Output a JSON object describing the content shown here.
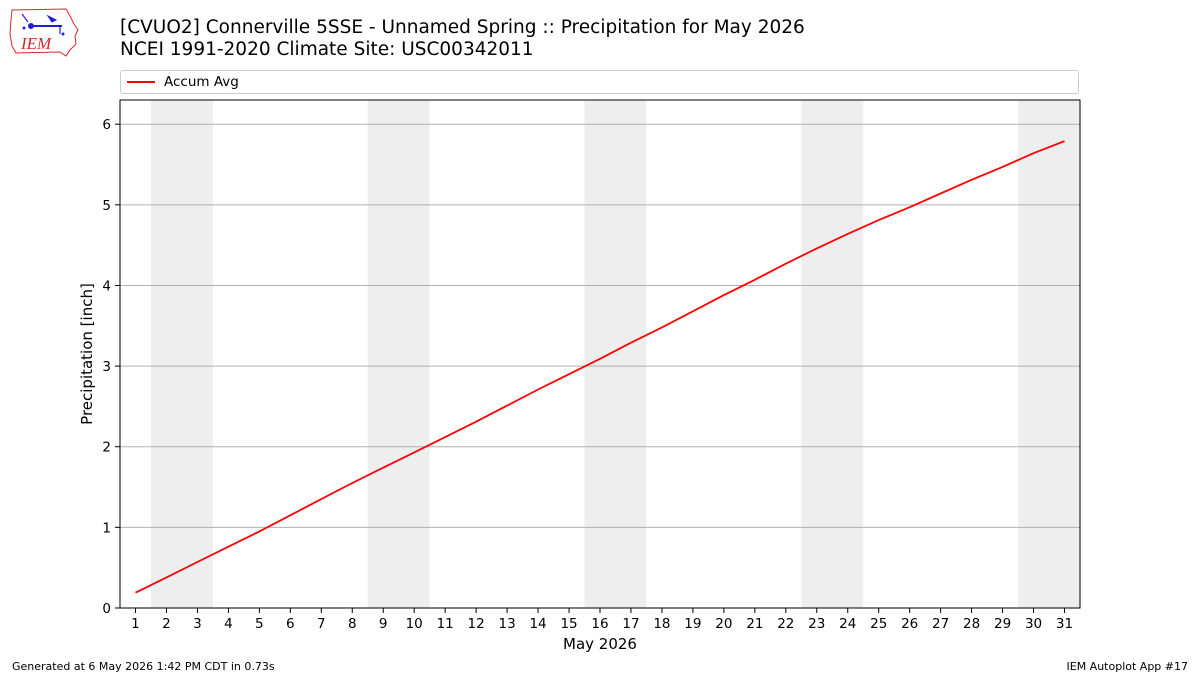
{
  "title_line1": "[CVUO2] Connerville 5SSE - Unnamed Spring :: Precipitation for May 2026",
  "title_line2": "NCEI 1991-2020 Climate Site: USC00342011",
  "logo_text": "IEM",
  "footer_left": "Generated at 6 May 2026 1:42 PM CDT in 0.73s",
  "footer_right": "IEM Autoplot App #17",
  "colors": {
    "series": "#ff0000",
    "weekend_band": "#eeeeee",
    "grid": "#b0b0b0",
    "logo": "#d62728",
    "logo_icon": "#1f1fd0"
  },
  "chart_data": {
    "type": "line",
    "xlabel": "May 2026",
    "ylabel": "Precipitation [inch]",
    "xlim": [
      0.5,
      31.5
    ],
    "ylim": [
      0,
      6.3
    ],
    "yticks": [
      0,
      1,
      2,
      3,
      4,
      5,
      6
    ],
    "xticks": [
      1,
      2,
      3,
      4,
      5,
      6,
      7,
      8,
      9,
      10,
      11,
      12,
      13,
      14,
      15,
      16,
      17,
      18,
      19,
      20,
      21,
      22,
      23,
      24,
      25,
      26,
      27,
      28,
      29,
      30,
      31
    ],
    "grid": "horizontal",
    "legend_placement": "top",
    "weekend_days": [
      [
        2,
        3
      ],
      [
        9,
        10
      ],
      [
        16,
        17
      ],
      [
        23,
        24
      ],
      [
        30,
        31
      ]
    ],
    "series": [
      {
        "name": "Accum Avg",
        "x": [
          1,
          2,
          3,
          4,
          5,
          6,
          7,
          8,
          9,
          10,
          11,
          12,
          13,
          14,
          15,
          16,
          17,
          18,
          19,
          20,
          21,
          22,
          23,
          24,
          25,
          26,
          27,
          28,
          29,
          30,
          31
        ],
        "values": [
          0.19,
          0.38,
          0.57,
          0.76,
          0.95,
          1.15,
          1.35,
          1.55,
          1.74,
          1.93,
          2.12,
          2.31,
          2.51,
          2.71,
          2.9,
          3.09,
          3.29,
          3.48,
          3.68,
          3.88,
          4.07,
          4.27,
          4.46,
          4.64,
          4.81,
          4.97,
          5.14,
          5.31,
          5.47,
          5.64,
          5.79
        ]
      }
    ]
  }
}
